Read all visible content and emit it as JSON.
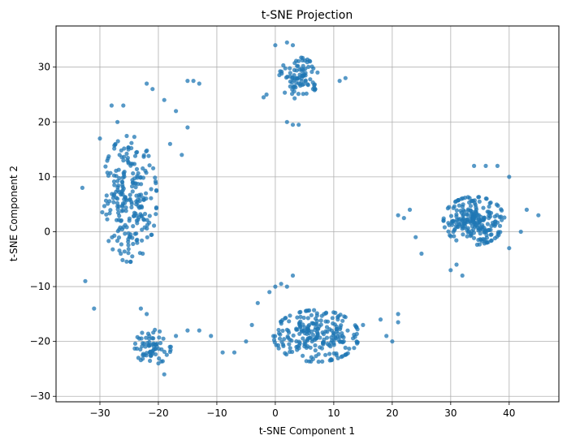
{
  "chart_data": {
    "type": "scatter",
    "title": "t-SNE Projection",
    "xlabel": "t-SNE Component 1",
    "ylabel": "t-SNE Component 2",
    "xlim": [
      -37.5,
      48.5
    ],
    "ylim": [
      -31,
      37.5
    ],
    "xticks": [
      -30,
      -20,
      -10,
      0,
      10,
      20,
      30,
      40
    ],
    "yticks": [
      -30,
      -20,
      -10,
      0,
      10,
      20,
      30
    ],
    "grid": true,
    "marker_color": "#1f77b4",
    "marker_alpha": 0.75,
    "clusters": [
      {
        "shape": "blob",
        "center": [
          -25,
          6
        ],
        "spread": [
          4.5,
          11
        ],
        "count": 240
      },
      {
        "shape": "blob",
        "center": [
          -21,
          -21
        ],
        "spread": [
          3,
          3
        ],
        "count": 70
      },
      {
        "shape": "blob",
        "center": [
          4,
          28
        ],
        "spread": [
          3.2,
          3.6
        ],
        "count": 90
      },
      {
        "shape": "blob",
        "center": [
          7,
          -19
        ],
        "spread": [
          7,
          4.5
        ],
        "count": 240
      },
      {
        "shape": "blob",
        "center": [
          34,
          2
        ],
        "spread": [
          5,
          4.2
        ],
        "count": 230
      }
    ],
    "points": [
      [
        -33,
        8
      ],
      [
        -32.5,
        -9
      ],
      [
        -31,
        -14
      ],
      [
        -30,
        17
      ],
      [
        -28,
        23
      ],
      [
        -27,
        20
      ],
      [
        -26,
        23
      ],
      [
        -22,
        27
      ],
      [
        -21,
        26
      ],
      [
        -19,
        24
      ],
      [
        -17,
        22
      ],
      [
        -15,
        27.5
      ],
      [
        -14,
        27.5
      ],
      [
        -13,
        27
      ],
      [
        -15,
        19
      ],
      [
        -16,
        14
      ],
      [
        -18,
        16
      ],
      [
        -23,
        -14
      ],
      [
        -22,
        -15
      ],
      [
        -20,
        -24
      ],
      [
        -19,
        -26
      ],
      [
        -17,
        -19
      ],
      [
        -15,
        -18
      ],
      [
        -13,
        -18
      ],
      [
        -11,
        -19
      ],
      [
        -9,
        -22
      ],
      [
        -7,
        -22
      ],
      [
        -5,
        -20
      ],
      [
        -4,
        -17
      ],
      [
        -3,
        -13
      ],
      [
        -1,
        -11
      ],
      [
        0,
        -10
      ],
      [
        1,
        -9.5
      ],
      [
        2,
        -10
      ],
      [
        3,
        -8
      ],
      [
        15,
        -17
      ],
      [
        18,
        -16
      ],
      [
        19,
        -19
      ],
      [
        20,
        -20
      ],
      [
        21,
        -15
      ],
      [
        21,
        -16.5
      ],
      [
        0,
        34
      ],
      [
        2,
        34.5
      ],
      [
        3,
        34
      ],
      [
        -2,
        24.5
      ],
      [
        -1.5,
        25
      ],
      [
        2,
        20
      ],
      [
        3,
        19.5
      ],
      [
        4,
        19.5
      ],
      [
        12,
        28
      ],
      [
        11,
        27.5
      ],
      [
        21,
        3
      ],
      [
        22,
        2.5
      ],
      [
        24,
        -1
      ],
      [
        23,
        4
      ],
      [
        25,
        -4
      ],
      [
        30,
        -7
      ],
      [
        32,
        -8
      ],
      [
        31,
        -6
      ],
      [
        34,
        12
      ],
      [
        36,
        12
      ],
      [
        38,
        12
      ],
      [
        40,
        10
      ],
      [
        43,
        4
      ],
      [
        45,
        3
      ],
      [
        42,
        0
      ],
      [
        40,
        -3
      ]
    ]
  }
}
